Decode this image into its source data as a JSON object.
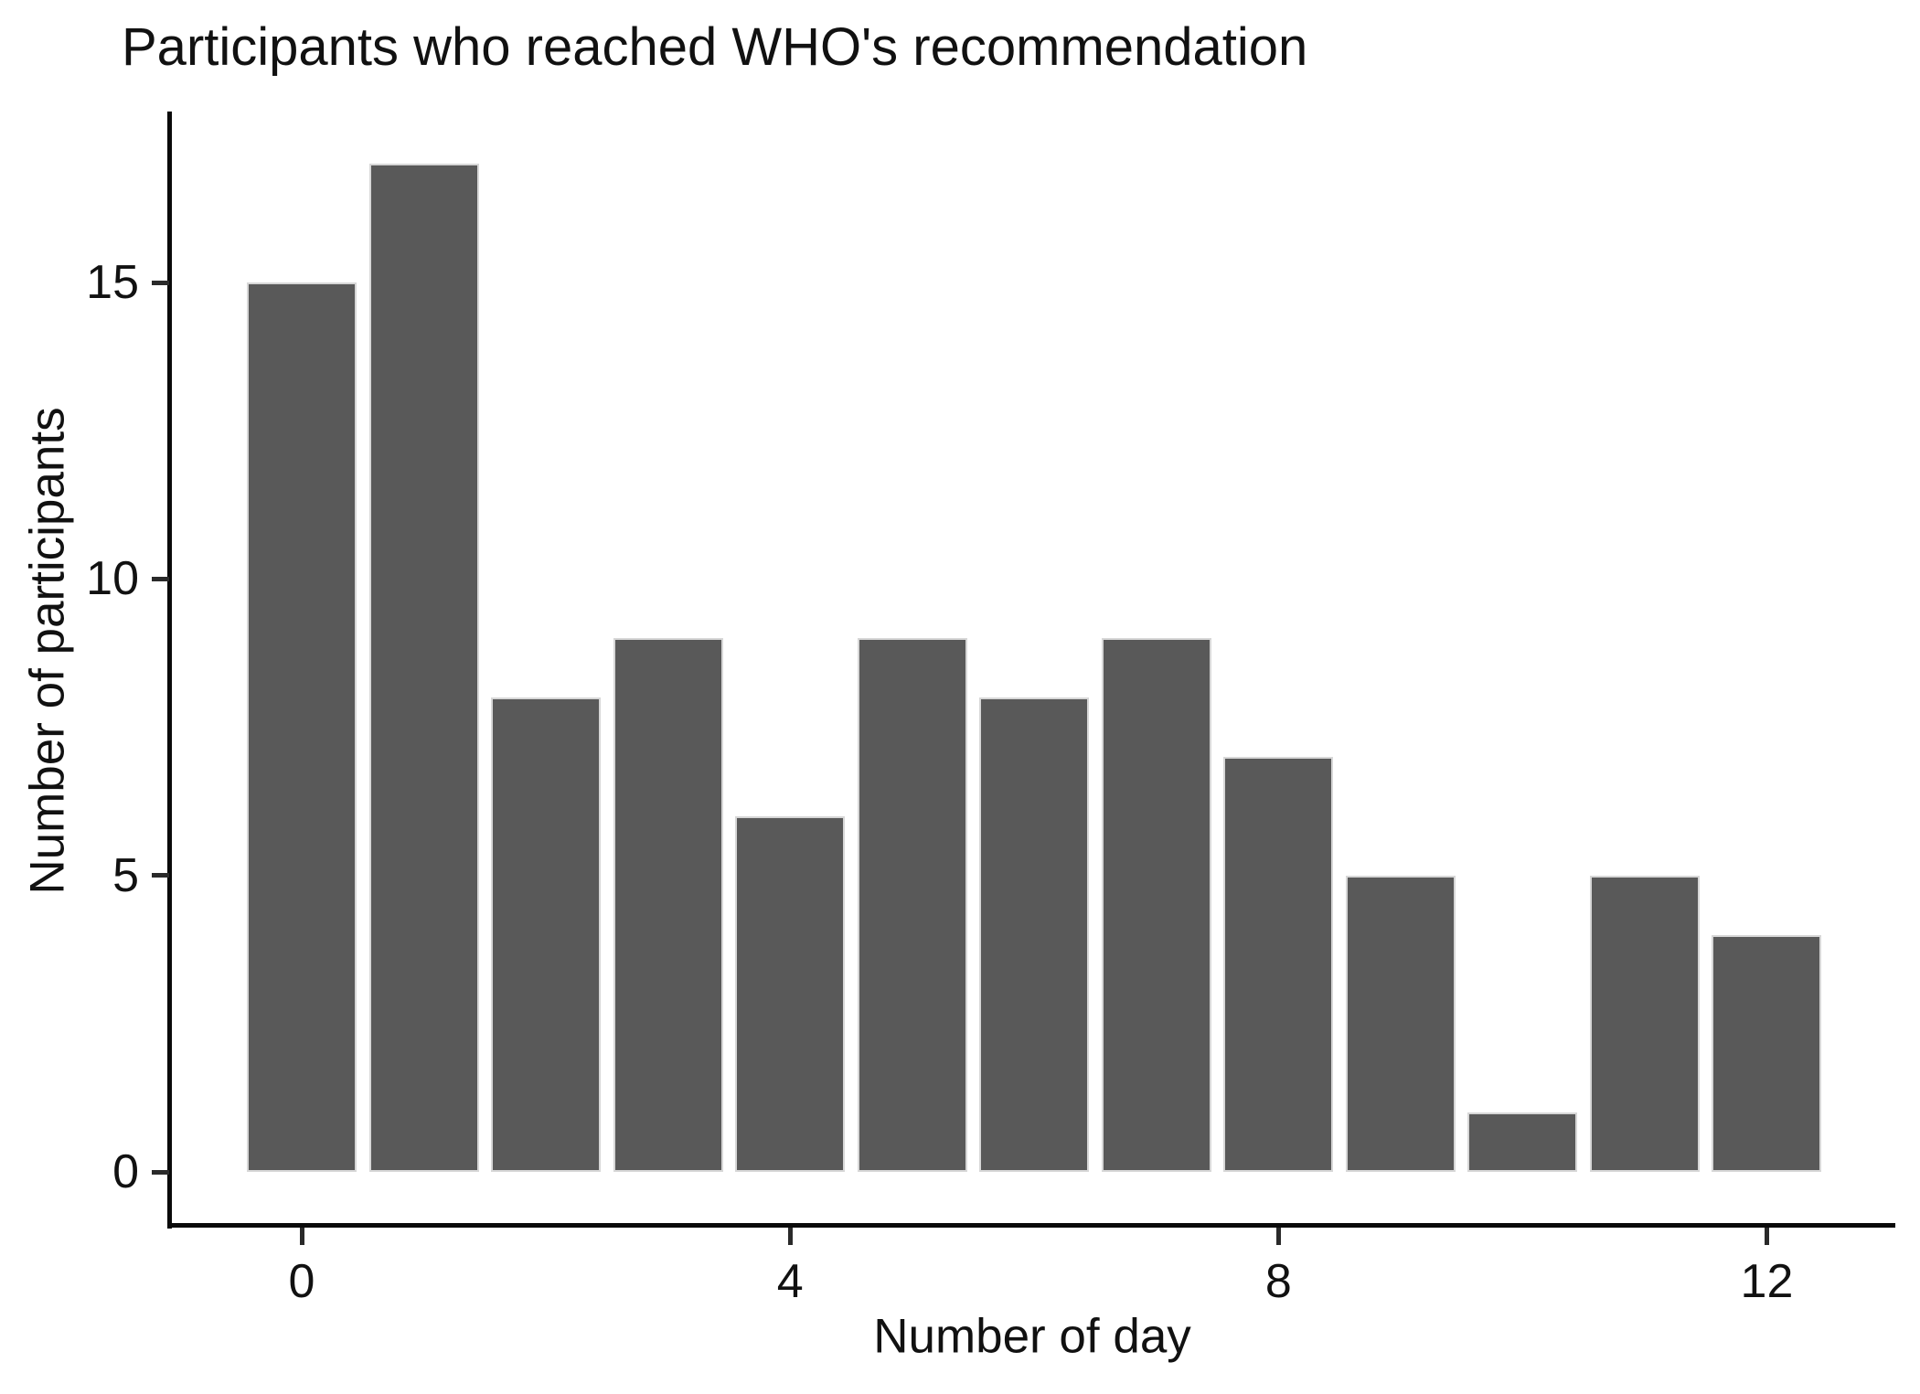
{
  "chart_data": {
    "type": "bar",
    "title": "Participants who reached WHO's recommendation",
    "xlabel": "Number of day",
    "ylabel": "Number of participants",
    "x": [
      0,
      1,
      2,
      3,
      4,
      5,
      6,
      7,
      8,
      9,
      10,
      11,
      12
    ],
    "values": [
      15,
      17,
      8,
      9,
      6,
      9,
      8,
      9,
      7,
      5,
      1,
      5,
      4
    ],
    "x_ticks": [
      0,
      4,
      8,
      12
    ],
    "y_ticks": [
      0,
      5,
      10,
      15
    ],
    "xlim": [
      -1.1,
      13.05
    ],
    "ylim": [
      0,
      17.85
    ],
    "grid": false,
    "legend_position": "none",
    "bar_fill_color": "#595959",
    "bar_border_color": "#d7d7d7",
    "axis_color": "#0a0a0a",
    "text_color": "#111111"
  }
}
